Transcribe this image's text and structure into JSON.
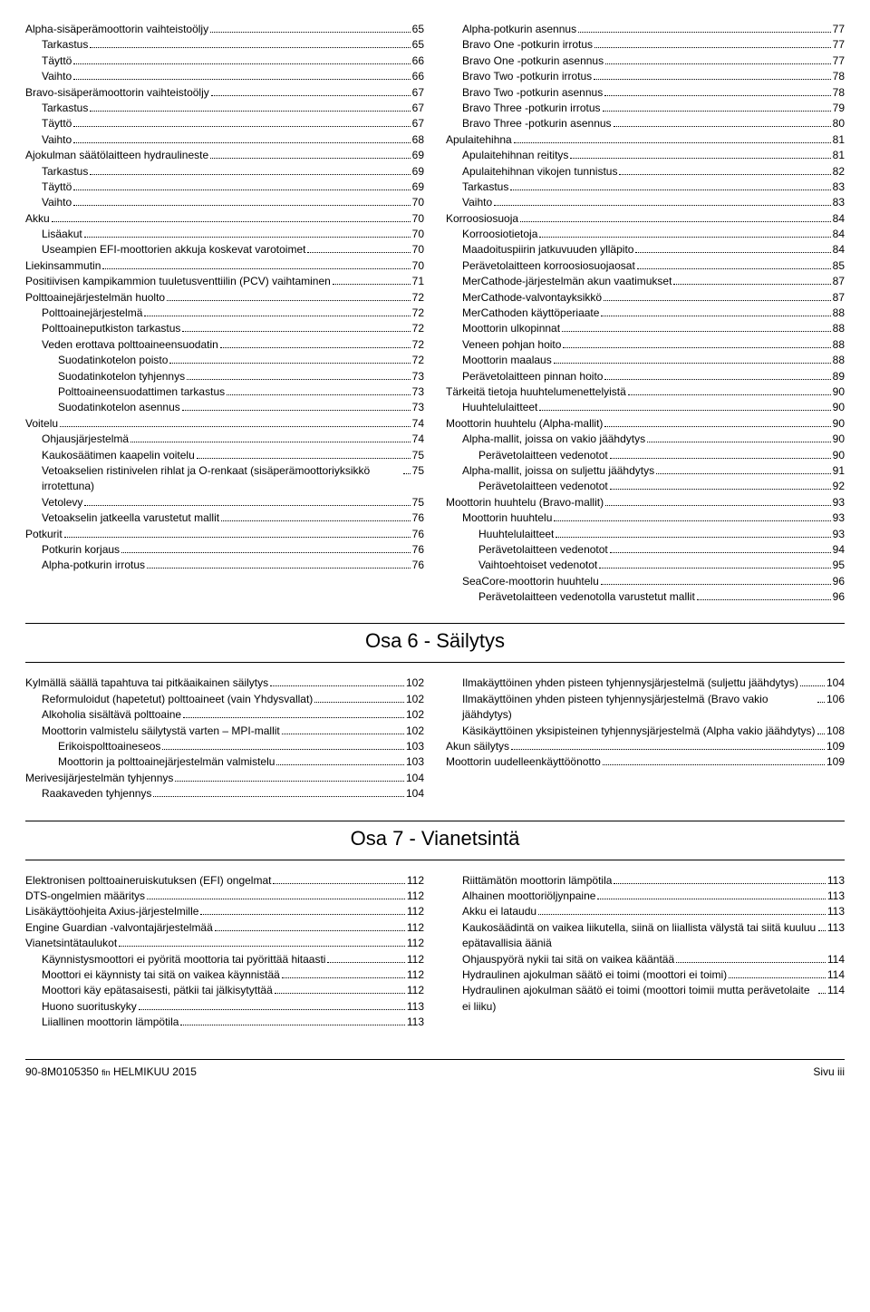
{
  "section5_left": [
    {
      "label": "Alpha‑sisäperämoottorin vaihteistoöljy",
      "page": "65",
      "indent": 0
    },
    {
      "label": "Tarkastus",
      "page": "65",
      "indent": 1
    },
    {
      "label": "Täyttö",
      "page": "66",
      "indent": 1
    },
    {
      "label": "Vaihto",
      "page": "66",
      "indent": 1
    },
    {
      "label": "Bravo‑sisäperämoottorin vaihteistoöljy",
      "page": "67",
      "indent": 0
    },
    {
      "label": "Tarkastus",
      "page": "67",
      "indent": 1
    },
    {
      "label": "Täyttö",
      "page": "67",
      "indent": 1
    },
    {
      "label": "Vaihto",
      "page": "68",
      "indent": 1
    },
    {
      "label": "Ajokulman säätölaitteen hydraulineste",
      "page": "69",
      "indent": 0
    },
    {
      "label": "Tarkastus",
      "page": "69",
      "indent": 1
    },
    {
      "label": "Täyttö",
      "page": "69",
      "indent": 1
    },
    {
      "label": "Vaihto",
      "page": "70",
      "indent": 1
    },
    {
      "label": "Akku",
      "page": "70",
      "indent": 0
    },
    {
      "label": "Lisäakut",
      "page": "70",
      "indent": 1
    },
    {
      "label": "Useampien EFI‑moottorien akkuja koskevat varotoimet",
      "page": "70",
      "indent": 1
    },
    {
      "label": "Liekinsammutin",
      "page": "70",
      "indent": 0
    },
    {
      "label": "Positiivisen kampikammion tuuletusventtiilin (PCV) vaihtaminen",
      "page": "71",
      "indent": 0
    },
    {
      "label": "Polttoainejärjestelmän huolto",
      "page": "72",
      "indent": 0
    },
    {
      "label": "Polttoainejärjestelmä",
      "page": "72",
      "indent": 1
    },
    {
      "label": "Polttoaineputkiston tarkastus",
      "page": "72",
      "indent": 1
    },
    {
      "label": "Veden erottava polttoaineensuodatin",
      "page": "72",
      "indent": 1
    },
    {
      "label": "Suodatinkotelon poisto",
      "page": "72",
      "indent": 2
    },
    {
      "label": "Suodatinkotelon tyhjennys",
      "page": "73",
      "indent": 2
    },
    {
      "label": "Polttoaineensuodattimen tarkastus",
      "page": "73",
      "indent": 2
    },
    {
      "label": "Suodatinkotelon asennus",
      "page": "73",
      "indent": 2
    },
    {
      "label": "Voitelu",
      "page": "74",
      "indent": 0
    },
    {
      "label": "Ohjausjärjestelmä",
      "page": "74",
      "indent": 1
    },
    {
      "label": "Kaukosäätimen kaapelin voitelu",
      "page": "75",
      "indent": 1
    },
    {
      "label": "Vetoakselien ristinivelen rihlat ja O‑renkaat (sisäperämoottoriyksikkö irrotettuna)",
      "page": "75",
      "indent": 1
    },
    {
      "label": "Vetolevy",
      "page": "75",
      "indent": 1
    },
    {
      "label": "Vetoakselin jatkeella varustetut mallit",
      "page": "76",
      "indent": 1
    },
    {
      "label": "Potkurit",
      "page": "76",
      "indent": 0
    },
    {
      "label": "Potkurin korjaus",
      "page": "76",
      "indent": 1
    },
    {
      "label": "Alpha‑potkurin irrotus",
      "page": "76",
      "indent": 1
    }
  ],
  "section5_right": [
    {
      "label": "Alpha‑potkurin asennus",
      "page": "77",
      "indent": 1
    },
    {
      "label": "Bravo One ‑potkurin irrotus",
      "page": "77",
      "indent": 1
    },
    {
      "label": "Bravo One ‑potkurin asennus",
      "page": "77",
      "indent": 1
    },
    {
      "label": "Bravo Two ‑potkurin irrotus",
      "page": "78",
      "indent": 1
    },
    {
      "label": "Bravo Two ‑potkurin asennus",
      "page": "78",
      "indent": 1
    },
    {
      "label": "Bravo Three ‑potkurin irrotus",
      "page": "79",
      "indent": 1
    },
    {
      "label": "Bravo Three ‑potkurin asennus",
      "page": "80",
      "indent": 1
    },
    {
      "label": "Apulaitehihna",
      "page": "81",
      "indent": 0
    },
    {
      "label": "Apulaitehihnan reititys",
      "page": "81",
      "indent": 1
    },
    {
      "label": "Apulaitehihnan vikojen tunnistus",
      "page": "82",
      "indent": 1
    },
    {
      "label": "Tarkastus",
      "page": "83",
      "indent": 1
    },
    {
      "label": "Vaihto",
      "page": "83",
      "indent": 1
    },
    {
      "label": "Korroosiosuoja",
      "page": "84",
      "indent": 0
    },
    {
      "label": "Korroosiotietoja",
      "page": "84",
      "indent": 1
    },
    {
      "label": "Maadoituspiirin jatkuvuuden ylläpito",
      "page": "84",
      "indent": 1
    },
    {
      "label": "Perävetolaitteen korroosiosuojaosat",
      "page": "85",
      "indent": 1
    },
    {
      "label": "MerCathode‑järjestelmän akun vaatimukset",
      "page": "87",
      "indent": 1
    },
    {
      "label": "MerCathode‑valvontayksikkö",
      "page": "87",
      "indent": 1
    },
    {
      "label": "MerCathoden käyttöperiaate",
      "page": "88",
      "indent": 1
    },
    {
      "label": "Moottorin ulkopinnat",
      "page": "88",
      "indent": 1
    },
    {
      "label": "Veneen pohjan hoito",
      "page": "88",
      "indent": 1
    },
    {
      "label": "Moottorin maalaus",
      "page": "88",
      "indent": 1
    },
    {
      "label": "Perävetolaitteen pinnan hoito",
      "page": "89",
      "indent": 1
    },
    {
      "label": "Tärkeitä tietoja huuhtelumenettelyistä",
      "page": "90",
      "indent": 0
    },
    {
      "label": "Huuhtelulaitteet",
      "page": "90",
      "indent": 1
    },
    {
      "label": "Moottorin huuhtelu (Alpha‑mallit)",
      "page": "90",
      "indent": 0
    },
    {
      "label": "Alpha‑mallit, joissa on vakio jäähdytys",
      "page": "90",
      "indent": 1
    },
    {
      "label": "Perävetolaitteen vedenotot",
      "page": "90",
      "indent": 2
    },
    {
      "label": "Alpha‑mallit, joissa on suljettu jäähdytys",
      "page": "91",
      "indent": 1
    },
    {
      "label": "Perävetolaitteen vedenotot",
      "page": "92",
      "indent": 2
    },
    {
      "label": "Moottorin huuhtelu (Bravo‑mallit)",
      "page": "93",
      "indent": 0
    },
    {
      "label": "Moottorin huuhtelu",
      "page": "93",
      "indent": 1
    },
    {
      "label": "Huuhtelulaitteet",
      "page": "93",
      "indent": 2
    },
    {
      "label": "Perävetolaitteen vedenotot",
      "page": "94",
      "indent": 2
    },
    {
      "label": "Vaihtoehtoiset vedenotot",
      "page": "95",
      "indent": 2
    },
    {
      "label": "SeaCore‑moottorin huuhtelu",
      "page": "96",
      "indent": 1
    },
    {
      "label": "Perävetolaitteen vedenotolla varustetut mallit",
      "page": "96",
      "indent": 2
    }
  ],
  "section6_title": "Osa 6 - Säilytys",
  "section6_left": [
    {
      "label": "Kylmällä säällä tapahtuva tai pitkäaikainen säilytys",
      "page": "102",
      "indent": 0
    },
    {
      "label": "Reformuloidut (hapetetut) polttoaineet (vain Yhdysvallat)",
      "page": "102",
      "indent": 1
    },
    {
      "label": "Alkoholia sisältävä polttoaine",
      "page": "102",
      "indent": 1
    },
    {
      "label": "Moottorin valmistelu säilytystä varten – MPI‑mallit",
      "page": "102",
      "indent": 1
    },
    {
      "label": "Erikoispolttoaineseos",
      "page": "103",
      "indent": 2
    },
    {
      "label": "Moottorin ja polttoainejärjestelmän valmistelu",
      "page": "103",
      "indent": 2
    },
    {
      "label": "Merivesijärjestelmän tyhjennys",
      "page": "104",
      "indent": 0
    },
    {
      "label": "Raakaveden tyhjennys",
      "page": "104",
      "indent": 1
    }
  ],
  "section6_right": [
    {
      "label": "Ilmakäyttöinen yhden pisteen tyhjennysjärjestelmä (suljettu jäähdytys)",
      "page": "104",
      "indent": 1
    },
    {
      "label": "Ilmakäyttöinen yhden pisteen tyhjennysjärjestelmä (Bravo vakio jäähdytys)",
      "page": "106",
      "indent": 1
    },
    {
      "label": "Käsikäyttöinen yksipisteinen tyhjennysjärjestelmä (Alpha vakio jäähdytys)",
      "page": "108",
      "indent": 1
    },
    {
      "label": "Akun säilytys",
      "page": "109",
      "indent": 0
    },
    {
      "label": "Moottorin uudelleenkäyttöönotto",
      "page": "109",
      "indent": 0
    }
  ],
  "section7_title": "Osa 7 - Vianetsintä",
  "section7_left": [
    {
      "label": "Elektronisen polttoaineruiskutuksen (EFI) ongelmat",
      "page": "112",
      "indent": 0
    },
    {
      "label": "DTS‑ongelmien määritys",
      "page": "112",
      "indent": 0
    },
    {
      "label": "Lisäkäyttöohjeita Axius‑järjestelmille",
      "page": "112",
      "indent": 0
    },
    {
      "label": "Engine Guardian ‑valvontajärjestelmää",
      "page": "112",
      "indent": 0
    },
    {
      "label": "Vianetsintätaulukot",
      "page": "112",
      "indent": 0
    },
    {
      "label": "Käynnistysmoottori ei pyöritä moottoria tai pyörittää hitaasti",
      "page": "112",
      "indent": 1
    },
    {
      "label": "Moottori ei käynnisty tai sitä on vaikea käynnistää",
      "page": "112",
      "indent": 1
    },
    {
      "label": "Moottori käy epätasaisesti, pätkii tai jälkisytyttää",
      "page": "112",
      "indent": 1
    },
    {
      "label": "Huono suorituskyky",
      "page": "113",
      "indent": 1
    },
    {
      "label": "Liiallinen moottorin lämpötila",
      "page": "113",
      "indent": 1
    }
  ],
  "section7_right": [
    {
      "label": "Riittämätön moottorin lämpötila",
      "page": "113",
      "indent": 1
    },
    {
      "label": "Alhainen moottoriöljynpaine",
      "page": "113",
      "indent": 1
    },
    {
      "label": "Akku ei lataudu",
      "page": "113",
      "indent": 1
    },
    {
      "label": "Kaukosäädintä on vaikea liikutella, siinä on liiallista välystä tai siitä kuuluu epätavallisia ääniä",
      "page": "113",
      "indent": 1
    },
    {
      "label": "Ohjauspyörä nykii tai sitä on vaikea kääntää",
      "page": "114",
      "indent": 1
    },
    {
      "label": "Hydraulinen ajokulman säätö ei toimi (moottori ei toimi)",
      "page": "114",
      "indent": 1
    },
    {
      "label": "Hydraulinen ajokulman säätö ei toimi (moottori toimii mutta perävetolaite ei liiku)",
      "page": "114",
      "indent": 1
    }
  ],
  "footer": {
    "left_code": "90-8M0105350",
    "left_sub": "fin",
    "left_date": "HELMIKUU 2015",
    "right": "Sivu  iii"
  }
}
